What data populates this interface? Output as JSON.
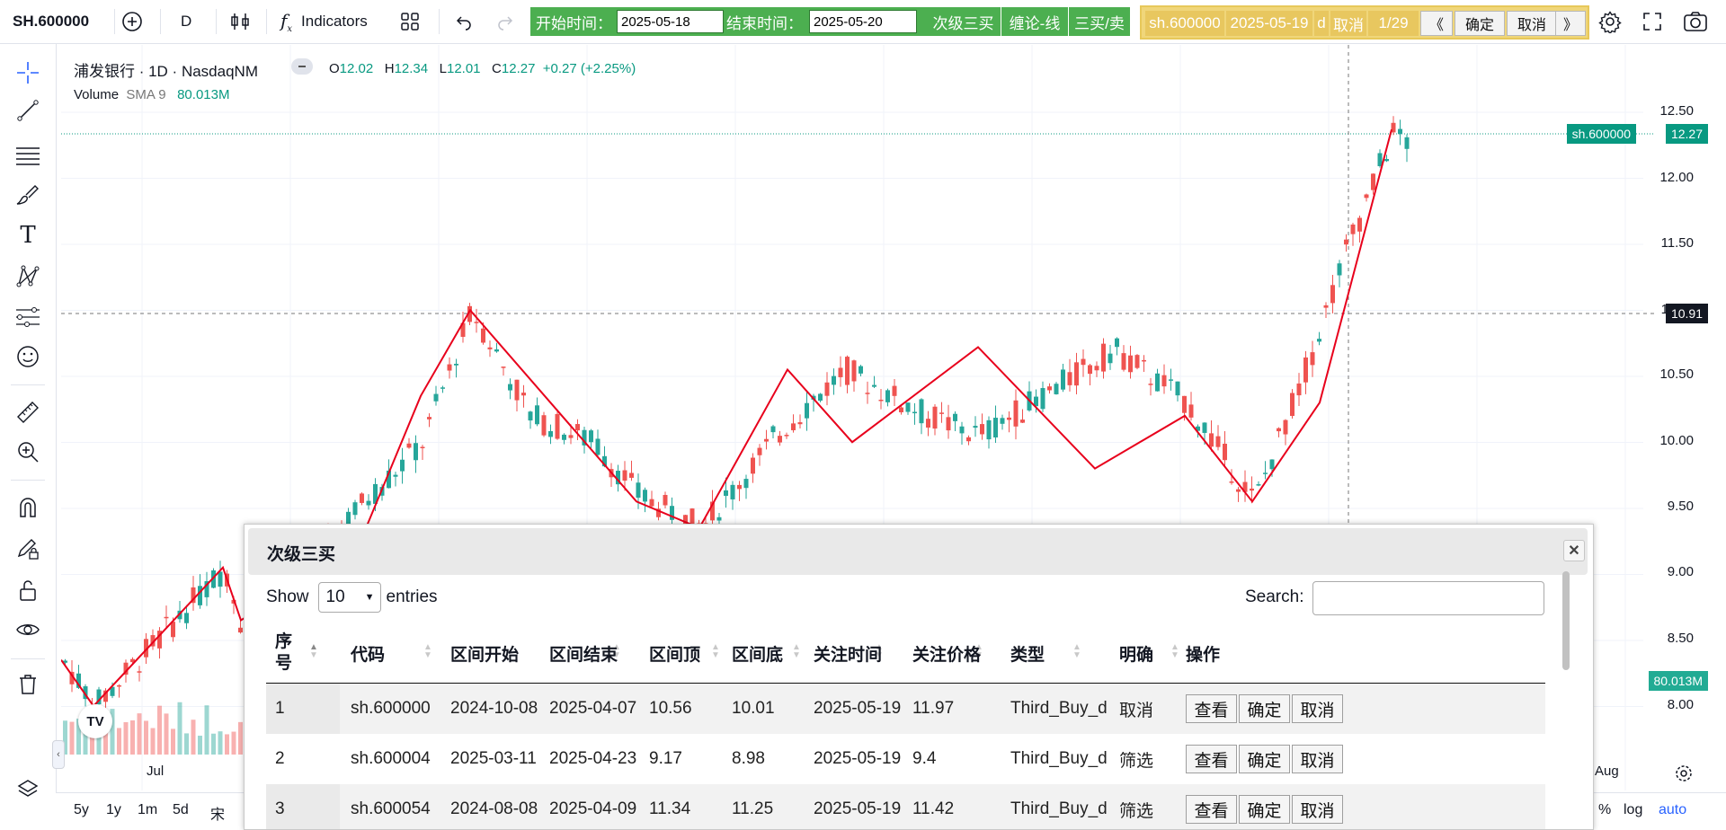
{
  "toolbar": {
    "symbol": "SH.600000",
    "interval": "D",
    "indicators_label": "Indicators",
    "start_label": "开始时间：",
    "start_value": "2025-05-18",
    "end_label": "结束时间：",
    "end_value": "2025-05-20",
    "btn_third_buy": "次级三买",
    "btn_chan_line": "缠论-线",
    "btn_buy_sell": "三买/卖",
    "gold_symbol": "sh.600000",
    "gold_date": "2025-05-19",
    "gold_period": "d",
    "gold_cancel": "取消",
    "gold_page": "1/29",
    "prev_btn": "《",
    "confirm_btn": "确定",
    "cancel_btn": "取消",
    "next_btn": "》"
  },
  "legend": {
    "title": "浦发银行 · 1D · NasdaqNM",
    "o_label": "O",
    "o_value": "12.02",
    "h_label": "H",
    "h_value": "12.34",
    "l_label": "L",
    "l_value": "12.01",
    "c_label": "C",
    "c_value": "12.27",
    "change": "+0.27 (+2.25%)",
    "volume_label": "Volume",
    "volume_ma": "SMA 9",
    "volume_value": "80.013M"
  },
  "price_axis": {
    "ticks": [
      "12.50",
      "12.00",
      "11.50",
      "11.00",
      "10.50",
      "10.00",
      "9.50",
      "9.00",
      "8.50",
      "8.00"
    ],
    "symbol_tag": "sh.600000",
    "last_price": "12.27",
    "crosshair_price": "10.91",
    "volume_tag": "80.013M"
  },
  "time_axis": {
    "labels": [
      "Jul",
      "Aug"
    ]
  },
  "bottom_bar": {
    "ranges": [
      "5y",
      "1y",
      "1m",
      "5d"
    ],
    "partial": "宋",
    "percent": "%",
    "log": "log",
    "auto": "auto"
  },
  "colors": {
    "up": "#26a69a",
    "down": "#ef5350",
    "zigzag": "#e8001c",
    "green_btn": "#4caf50",
    "gold": "#e8c75f"
  },
  "modal": {
    "title": "次级三买",
    "show_label": "Show",
    "page_size": "10",
    "entries_label": "entries",
    "search_label": "Search:",
    "search_value": "",
    "columns": [
      "序号",
      "代码",
      "区间开始",
      "区间结束",
      "区间顶",
      "区间底",
      "关注时间",
      "关注价格",
      "类型",
      "明确",
      "操作"
    ],
    "actions": {
      "view": "查看",
      "confirm": "确定",
      "cancel": "取消"
    },
    "rows": [
      {
        "no": "1",
        "code": "sh.600000",
        "start": "2024-10-08",
        "end": "2025-04-07",
        "top": "10.56",
        "bottom": "10.01",
        "time": "2025-05-19",
        "price": "11.97",
        "type": "Third_Buy_d",
        "flag": "取消"
      },
      {
        "no": "2",
        "code": "sh.600004",
        "start": "2025-03-11",
        "end": "2025-04-23",
        "top": "9.17",
        "bottom": "8.98",
        "time": "2025-05-19",
        "price": "9.4",
        "type": "Third_Buy_d",
        "flag": "筛选"
      },
      {
        "no": "3",
        "code": "sh.600054",
        "start": "2024-08-08",
        "end": "2025-04-09",
        "top": "11.34",
        "bottom": "11.25",
        "time": "2025-05-19",
        "price": "11.42",
        "type": "Third_Buy_d",
        "flag": "筛选"
      }
    ]
  }
}
